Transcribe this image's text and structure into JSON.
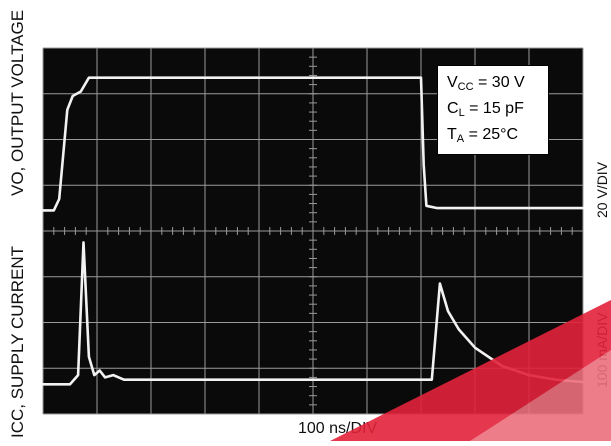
{
  "chart_data": {
    "type": "line",
    "title": "",
    "xlabel": "100 ns/DIV",
    "x_divisions": 10,
    "y_divisions": 8,
    "grid": true,
    "series": [
      {
        "name": "VO, OUTPUT VOLTAGE",
        "scale": "20 V/DIV",
        "x": [
          0.0,
          0.2,
          0.3,
          0.45,
          0.55,
          0.7,
          0.85,
          1.0,
          2.0,
          4.0,
          6.0,
          7.0,
          7.05,
          7.1,
          7.3,
          8.0,
          10.0
        ],
        "y": [
          0.0,
          0.0,
          0.25,
          2.2,
          2.5,
          2.6,
          2.9,
          2.9,
          2.9,
          2.9,
          2.9,
          2.9,
          1.0,
          0.1,
          0.05,
          0.05,
          0.05
        ]
      },
      {
        "name": "ICC, SUPPLY CURRENT",
        "scale": "100 mA/DIV",
        "x": [
          0.0,
          0.5,
          0.65,
          0.75,
          0.85,
          0.95,
          1.05,
          1.15,
          1.3,
          1.5,
          3.0,
          6.0,
          7.2,
          7.35,
          7.5,
          7.7,
          8.0,
          8.5,
          9.0,
          9.5,
          10.0
        ],
        "y": [
          0.0,
          0.0,
          0.2,
          3.1,
          0.6,
          0.2,
          0.3,
          0.15,
          0.2,
          0.1,
          0.1,
          0.1,
          0.1,
          2.2,
          1.6,
          1.2,
          0.8,
          0.4,
          0.2,
          0.1,
          0.05
        ]
      }
    ],
    "annotations": {
      "vcc": {
        "main": "V",
        "sub": "CC",
        "rest": " = 30 V"
      },
      "cl": {
        "main": "C",
        "sub": "L",
        "rest": " = 15 pF"
      },
      "ta": {
        "main": "T",
        "sub": "A",
        "rest": " = 25°C"
      }
    },
    "colors": {
      "screen": "#0a0a0a",
      "grid": "#9a9a9a",
      "trace": "#f2f2f2",
      "watermark": "#e3223a"
    }
  },
  "labels": {
    "vo_axis": "VO, OUTPUT VOLTAGE",
    "icc_axis": "ICC, SUPPLY CURRENT",
    "vo_scale": "20 V/DIV",
    "icc_scale": "100 mA/DIV"
  }
}
